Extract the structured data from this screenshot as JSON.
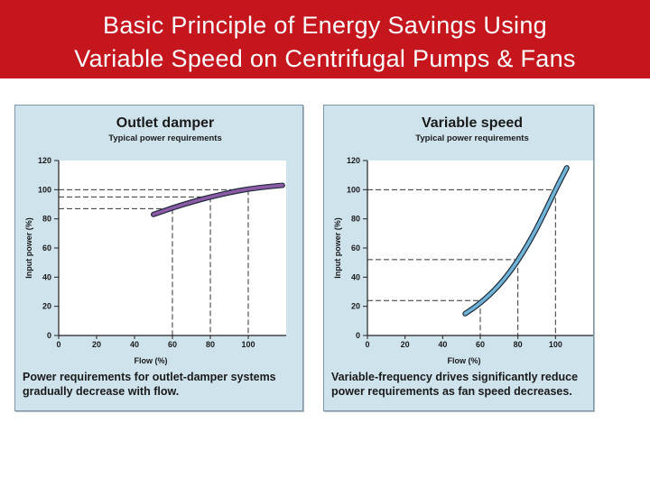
{
  "header": {
    "title_line1": "Basic Principle of Energy Savings Using",
    "title_line2": "Variable Speed on Centrifugal Pumps & Fans",
    "background_color": "#c4161c"
  },
  "chart_data": [
    {
      "type": "line",
      "title": "Outlet damper",
      "subtitle": "Typical power requirements",
      "xlabel": "Flow (%)",
      "ylabel": "Input power (%)",
      "xlim": [
        0,
        120
      ],
      "ylim": [
        0,
        120
      ],
      "x_ticks": [
        "0",
        "20",
        "40",
        "60",
        "80",
        "100"
      ],
      "y_ticks": [
        "0",
        "20",
        "40",
        "60",
        "80",
        "100",
        "120"
      ],
      "series": [
        {
          "x": [
            50,
            60,
            70,
            80,
            90,
            100,
            110,
            118
          ],
          "y": [
            83,
            87.5,
            91.5,
            95,
            98,
            100.5,
            102,
            103
          ],
          "color": "#8c5aa6"
        }
      ],
      "reference_points": [
        {
          "x": 60,
          "y": 87
        },
        {
          "x": 80,
          "y": 95
        },
        {
          "x": 100,
          "y": 100
        }
      ],
      "caption_line1": "Power requirements for outlet-damper systems",
      "caption_line2": "gradually decrease with flow.",
      "grid": false
    },
    {
      "type": "line",
      "title": "Variable speed",
      "subtitle": "Typical power requirements",
      "xlabel": "Flow (%)",
      "ylabel": "Input power (%)",
      "xlim": [
        0,
        120
      ],
      "ylim": [
        0,
        120
      ],
      "x_ticks": [
        "0",
        "20",
        "40",
        "60",
        "80",
        "100"
      ],
      "y_ticks": [
        "0",
        "20",
        "40",
        "60",
        "80",
        "100",
        "120"
      ],
      "series": [
        {
          "x": [
            52,
            60,
            70,
            80,
            90,
            100,
            106
          ],
          "y": [
            15,
            22,
            34,
            51,
            73,
            100,
            115
          ],
          "color": "#6fb3d6"
        }
      ],
      "reference_points": [
        {
          "x": 60,
          "y": 24
        },
        {
          "x": 80,
          "y": 52
        },
        {
          "x": 100,
          "y": 100
        }
      ],
      "caption_line1": "Variable-frequency drives significantly reduce",
      "caption_line2": "power requirements as fan speed decreases.",
      "grid": false
    }
  ]
}
